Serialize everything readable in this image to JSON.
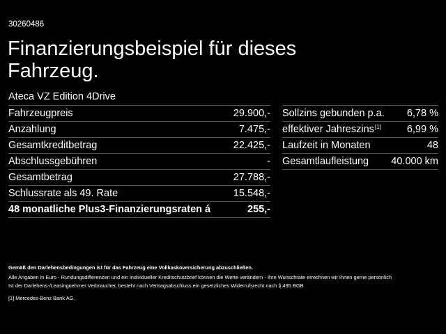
{
  "ref_number": "30260486",
  "headline": {
    "line1": "Finanzierungsbeispiel für dieses",
    "line2": "Fahrzeug."
  },
  "model": "Ateca VZ Edition 4Drive",
  "left_table": [
    {
      "label": "Fahrzeugpreis",
      "value": "29.900,-"
    },
    {
      "label": "Anzahlung",
      "value": "7.475,-"
    },
    {
      "label": "Gesamtkreditbetrag",
      "value": "22.425,-"
    },
    {
      "label": "Abschlussgebühren",
      "value": "-"
    },
    {
      "label": "Gesamtbetrag",
      "value": "27.788,-"
    },
    {
      "label": "Schlussrate als 49. Rate",
      "value": "15.548,-"
    },
    {
      "label": "48 monatliche Plus3-Finanzierungsraten á",
      "value": "255,-"
    }
  ],
  "right_table": [
    {
      "label": "Sollzins gebunden p.a.",
      "sup": "",
      "value": "6,78 %"
    },
    {
      "label": "effektiver Jahreszins",
      "sup": "[1]",
      "value": "6,99 %"
    },
    {
      "label": "Laufzeit in Monaten",
      "sup": "",
      "value": "48"
    },
    {
      "label": "Gesamtlaufleistung",
      "sup": "",
      "value": "40.000 km"
    }
  ],
  "notes": {
    "insurance": "Gemäß den Darlehensbedingungen ist für das Fahrzeug eine Vollkaskoversicherung abzuschließen.",
    "line1": "Alle Angaben in Euro - Rundungsdifferenzen und ein individueller Kreditschutzbrief können die Werte verändern - Ihre Wunschrate errechnen wir Ihnen gerne persönlich",
    "line2": "Ist der Darlehens-/Leasingnehmer Verbraucher, besteht nach Vertragsabschluss ein gesetzliches Widerrufsrecht nach § 495 BGB",
    "footnote_mark": "[1]",
    "footnote_text": "Mercedes-Benz Bank AG."
  }
}
